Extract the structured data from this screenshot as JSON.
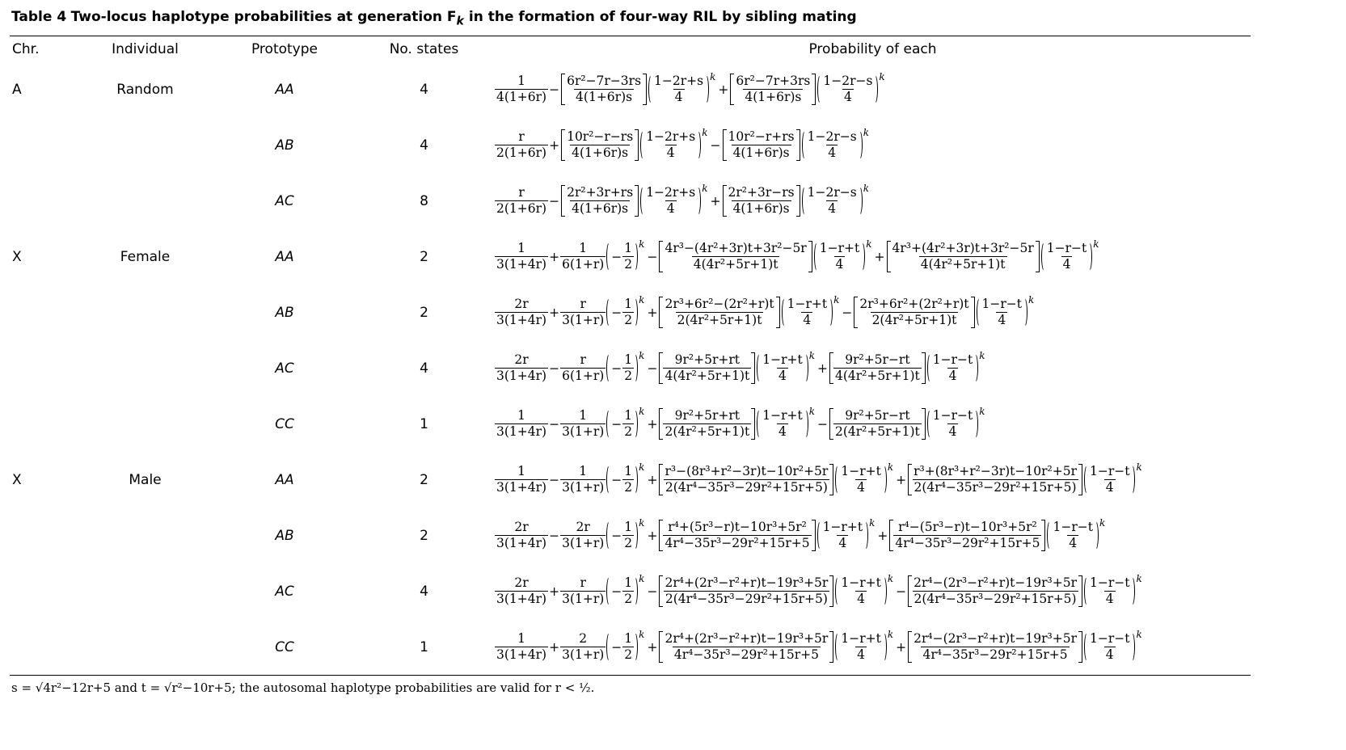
{
  "table_title": {
    "label": "Table 4",
    "text": "Two-locus haplotype probabilities at generation F",
    "sub": "k",
    "rest": " in the formation of four-way RIL by sibling mating"
  },
  "headers": [
    "Chr.",
    "Individual",
    "Prototype",
    "No. states",
    "Probability of each"
  ],
  "groups": [
    {
      "chr": "A",
      "individual": "Random",
      "rows": [
        {
          "prototype": "AA",
          "states": 4,
          "formula": [
            {
              "n": "1",
              "d": "4(1+6r)"
            },
            "−",
            {
              "n": "6r²−7r−3rs",
              "d": "4(1+6r)s",
              "w": "s"
            },
            {
              "n": "1−2r+s",
              "d": "4",
              "w": "p",
              "e": "k"
            },
            "+",
            {
              "n": "6r²−7r+3rs",
              "d": "4(1+6r)s",
              "w": "s"
            },
            {
              "n": "1−2r−s",
              "d": "4",
              "w": "p",
              "e": "k"
            }
          ]
        },
        {
          "prototype": "AB",
          "states": 4,
          "formula": [
            {
              "n": "r",
              "d": "2(1+6r)"
            },
            "+",
            {
              "n": "10r²−r−rs",
              "d": "4(1+6r)s",
              "w": "s"
            },
            {
              "n": "1−2r+s",
              "d": "4",
              "w": "p",
              "e": "k"
            },
            "−",
            {
              "n": "10r²−r+rs",
              "d": "4(1+6r)s",
              "w": "s"
            },
            {
              "n": "1−2r−s",
              "d": "4",
              "w": "p",
              "e": "k"
            }
          ]
        },
        {
          "prototype": "AC",
          "states": 8,
          "formula": [
            {
              "n": "r",
              "d": "2(1+6r)"
            },
            "−",
            {
              "n": "2r²+3r+rs",
              "d": "4(1+6r)s",
              "w": "s"
            },
            {
              "n": "1−2r+s",
              "d": "4",
              "w": "p",
              "e": "k"
            },
            "+",
            {
              "n": "2r²+3r−rs",
              "d": "4(1+6r)s",
              "w": "s"
            },
            {
              "n": "1−2r−s",
              "d": "4",
              "w": "p",
              "e": "k"
            }
          ]
        }
      ]
    },
    {
      "chr": "X",
      "individual": "Female",
      "rows": [
        {
          "prototype": "AA",
          "states": 2,
          "formula": [
            {
              "n": "1",
              "d": "3(1+4r)"
            },
            "+",
            {
              "n": "1",
              "d": "6(1+r)"
            },
            {
              "pre": "−",
              "n": "1",
              "d": "2",
              "w": "p",
              "e": "k"
            },
            "−",
            {
              "n": "4r³−(4r²+3r)t+3r²−5r",
              "d": "4(4r²+5r+1)t",
              "w": "s"
            },
            {
              "n": "1−r+t",
              "d": "4",
              "w": "p",
              "e": "k"
            },
            "+",
            {
              "n": "4r³+(4r²+3r)t+3r²−5r",
              "d": "4(4r²+5r+1)t",
              "w": "s"
            },
            {
              "n": "1−r−t",
              "d": "4",
              "w": "p",
              "e": "k"
            }
          ]
        },
        {
          "prototype": "AB",
          "states": 2,
          "formula": [
            {
              "n": "2r",
              "d": "3(1+4r)"
            },
            "+",
            {
              "n": "r",
              "d": "3(1+r)"
            },
            {
              "pre": "−",
              "n": "1",
              "d": "2",
              "w": "p",
              "e": "k"
            },
            "+",
            {
              "n": "2r³+6r²−(2r²+r)t",
              "d": "2(4r²+5r+1)t",
              "w": "s"
            },
            {
              "n": "1−r+t",
              "d": "4",
              "w": "p",
              "e": "k"
            },
            "−",
            {
              "n": "2r³+6r²+(2r²+r)t",
              "d": "2(4r²+5r+1)t",
              "w": "s"
            },
            {
              "n": "1−r−t",
              "d": "4",
              "w": "p",
              "e": "k"
            }
          ]
        },
        {
          "prototype": "AC",
          "states": 4,
          "formula": [
            {
              "n": "2r",
              "d": "3(1+4r)"
            },
            "−",
            {
              "n": "r",
              "d": "6(1+r)"
            },
            {
              "pre": "−",
              "n": "1",
              "d": "2",
              "w": "p",
              "e": "k"
            },
            "−",
            {
              "n": "9r²+5r+rt",
              "d": "4(4r²+5r+1)t",
              "w": "s"
            },
            {
              "n": "1−r+t",
              "d": "4",
              "w": "p",
              "e": "k"
            },
            "+",
            {
              "n": "9r²+5r−rt",
              "d": "4(4r²+5r+1)t",
              "w": "s"
            },
            {
              "n": "1−r−t",
              "d": "4",
              "w": "p",
              "e": "k"
            }
          ]
        },
        {
          "prototype": "CC",
          "states": 1,
          "formula": [
            {
              "n": "1",
              "d": "3(1+4r)"
            },
            "−",
            {
              "n": "1",
              "d": "3(1+r)"
            },
            {
              "pre": "−",
              "n": "1",
              "d": "2",
              "w": "p",
              "e": "k"
            },
            "+",
            {
              "n": "9r²+5r+rt",
              "d": "2(4r²+5r+1)t",
              "w": "s"
            },
            {
              "n": "1−r+t",
              "d": "4",
              "w": "p",
              "e": "k"
            },
            "−",
            {
              "n": "9r²+5r−rt",
              "d": "2(4r²+5r+1)t",
              "w": "s"
            },
            {
              "n": "1−r−t",
              "d": "4",
              "w": "p",
              "e": "k"
            }
          ]
        }
      ]
    },
    {
      "chr": "X",
      "individual": "Male",
      "rows": [
        {
          "prototype": "AA",
          "states": 2,
          "formula": [
            {
              "n": "1",
              "d": "3(1+4r)"
            },
            "−",
            {
              "n": "1",
              "d": "3(1+r)"
            },
            {
              "pre": "−",
              "n": "1",
              "d": "2",
              "w": "p",
              "e": "k"
            },
            "+",
            {
              "n": "r³−(8r³+r²−3r)t−10r²+5r",
              "d": "2(4r⁴−35r³−29r²+15r+5)",
              "w": "s"
            },
            {
              "n": "1−r+t",
              "d": "4",
              "w": "p",
              "e": "k"
            },
            "+",
            {
              "n": "r³+(8r³+r²−3r)t−10r²+5r",
              "d": "2(4r⁴−35r³−29r²+15r+5)",
              "w": "s"
            },
            {
              "n": "1−r−t",
              "d": "4",
              "w": "p",
              "e": "k"
            }
          ]
        },
        {
          "prototype": "AB",
          "states": 2,
          "formula": [
            {
              "n": "2r",
              "d": "3(1+4r)"
            },
            "−",
            {
              "n": "2r",
              "d": "3(1+r)"
            },
            {
              "pre": "−",
              "n": "1",
              "d": "2",
              "w": "p",
              "e": "k"
            },
            "+",
            {
              "n": "r⁴+(5r³−r)t−10r³+5r²",
              "d": "4r⁴−35r³−29r²+15r+5",
              "w": "s"
            },
            {
              "n": "1−r+t",
              "d": "4",
              "w": "p",
              "e": "k"
            },
            "+",
            {
              "n": "r⁴−(5r³−r)t−10r³+5r²",
              "d": "4r⁴−35r³−29r²+15r+5",
              "w": "s"
            },
            {
              "n": "1−r−t",
              "d": "4",
              "w": "p",
              "e": "k"
            }
          ]
        },
        {
          "prototype": "AC",
          "states": 4,
          "formula": [
            {
              "n": "2r",
              "d": "3(1+4r)"
            },
            "+",
            {
              "n": "r",
              "d": "3(1+r)"
            },
            {
              "pre": "−",
              "n": "1",
              "d": "2",
              "w": "p",
              "e": "k"
            },
            "−",
            {
              "n": "2r⁴+(2r³−r²+r)t−19r³+5r",
              "d": "2(4r⁴−35r³−29r²+15r+5)",
              "w": "s"
            },
            {
              "n": "1−r+t",
              "d": "4",
              "w": "p",
              "e": "k"
            },
            "−",
            {
              "n": "2r⁴−(2r³−r²+r)t−19r³+5r",
              "d": "2(4r⁴−35r³−29r²+15r+5)",
              "w": "s"
            },
            {
              "n": "1−r−t",
              "d": "4",
              "w": "p",
              "e": "k"
            }
          ]
        },
        {
          "prototype": "CC",
          "states": 1,
          "formula": [
            {
              "n": "1",
              "d": "3(1+4r)"
            },
            "+",
            {
              "n": "2",
              "d": "3(1+r)"
            },
            {
              "pre": "−",
              "n": "1",
              "d": "2",
              "w": "p",
              "e": "k"
            },
            "+",
            {
              "n": "2r⁴+(2r³−r²+r)t−19r³+5r",
              "d": "4r⁴−35r³−29r²+15r+5",
              "w": "s"
            },
            {
              "n": "1−r+t",
              "d": "4",
              "w": "p",
              "e": "k"
            },
            "+",
            {
              "n": "2r⁴−(2r³−r²+r)t−19r³+5r",
              "d": "4r⁴−35r³−29r²+15r+5",
              "w": "s"
            },
            {
              "n": "1−r−t",
              "d": "4",
              "w": "p",
              "e": "k"
            }
          ]
        }
      ]
    }
  ],
  "footnote": "s = √4r²−12r+5 and t = √r²−10r+5; the autosomal haplotype probabilities are valid for r < ½."
}
